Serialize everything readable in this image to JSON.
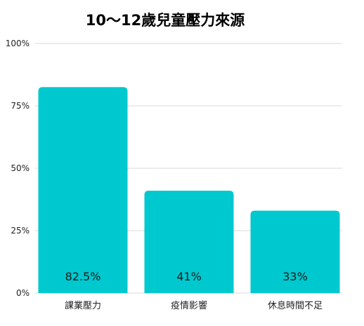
{
  "chart_data": {
    "type": "bar",
    "title": "10～12歲兒童壓力來源",
    "xlabel": "",
    "ylabel": "",
    "categories": [
      "課業壓力",
      "疫情影響",
      "休息時間不足"
    ],
    "values": [
      82.5,
      41,
      33
    ],
    "data_labels": [
      "82.5%",
      "41%",
      "33%"
    ],
    "ylim": [
      0,
      100
    ],
    "yticks": [
      0,
      25,
      50,
      75,
      100
    ],
    "ytick_labels": [
      "0%",
      "25%",
      "50%",
      "75%",
      "100%"
    ],
    "grid": true,
    "legend": "none",
    "bar_color": "#00C8CF",
    "grid_color": "#D9D9D9"
  }
}
